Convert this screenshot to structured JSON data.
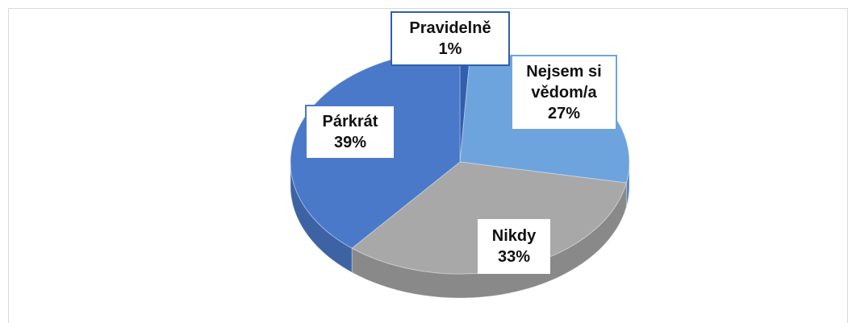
{
  "chart_data": {
    "type": "pie",
    "categories": [
      "Pravidelně",
      "Nejsem si vědom/a",
      "Nikdy",
      "Párkrát"
    ],
    "values": [
      1,
      27,
      33,
      39
    ],
    "value_labels": [
      "1%",
      "27%",
      "33%",
      "39%"
    ],
    "colors": [
      "#2f5fae",
      "#6ea4dd",
      "#a8a8a8",
      "#4b79c9"
    ]
  }
}
